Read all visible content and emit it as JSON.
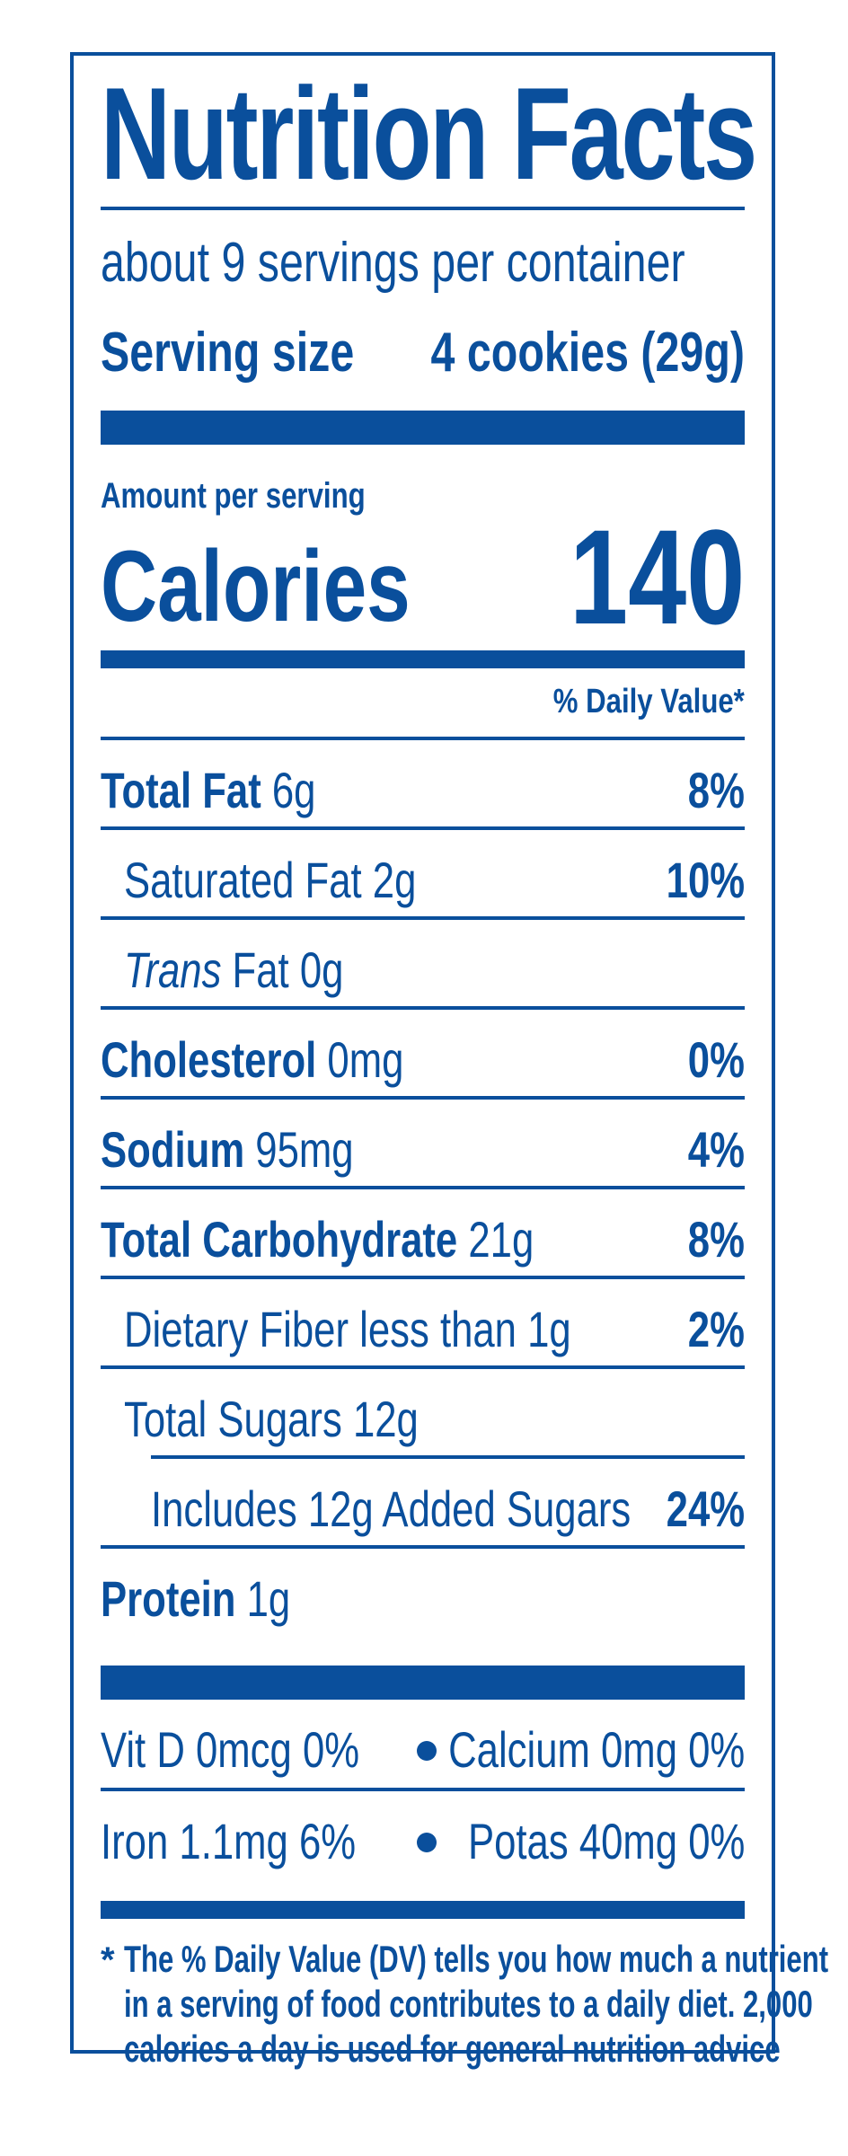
{
  "label": {
    "title": "Nutrition Facts",
    "servings": "about 9 servings per container",
    "serving_size_label": "Serving size",
    "serving_size_value": "4 cookies (29g)",
    "amount_per_serving": "Amount per serving",
    "calories_label": "Calories",
    "calories_value": "140",
    "dv_header": "% Daily Value*"
  },
  "nutrients": [
    {
      "name": "Total Fat",
      "amount": "6g",
      "dv": "8%"
    },
    {
      "name": "Saturated Fat",
      "amount": "2g",
      "dv": "10%"
    },
    {
      "name": "Trans",
      "name_rest": "Fat",
      "amount": "0g",
      "dv": ""
    },
    {
      "name": "Cholesterol",
      "amount": "0mg",
      "dv": "0%"
    },
    {
      "name": "Sodium",
      "amount": "95mg",
      "dv": "4%"
    },
    {
      "name": "Total Carbohydrate",
      "amount": "21g",
      "dv": "8%"
    },
    {
      "name": "Dietary Fiber less than",
      "amount": "1g",
      "dv": "2%"
    },
    {
      "name": "Total Sugars",
      "amount": "12g",
      "dv": ""
    },
    {
      "name": "Includes 12g Added Sugars",
      "amount": "",
      "dv": "24%"
    },
    {
      "name": "Protein",
      "amount": "1g",
      "dv": ""
    }
  ],
  "vitamins": [
    {
      "left": "Vit D 0mcg 0%",
      "right": "Calcium 0mg 0%"
    },
    {
      "left": "Iron 1.1mg 6%",
      "right": "Potas 40mg 0%"
    }
  ],
  "footnote": {
    "star": "*",
    "lines": [
      "The % Daily Value (DV) tells you how much a nutrient",
      "in a serving of food contributes to a daily diet. 2,000",
      "calories a day is used for general nutrition advice"
    ]
  },
  "colors": {
    "ink": "#0a4f9c",
    "background": "#ffffff"
  }
}
